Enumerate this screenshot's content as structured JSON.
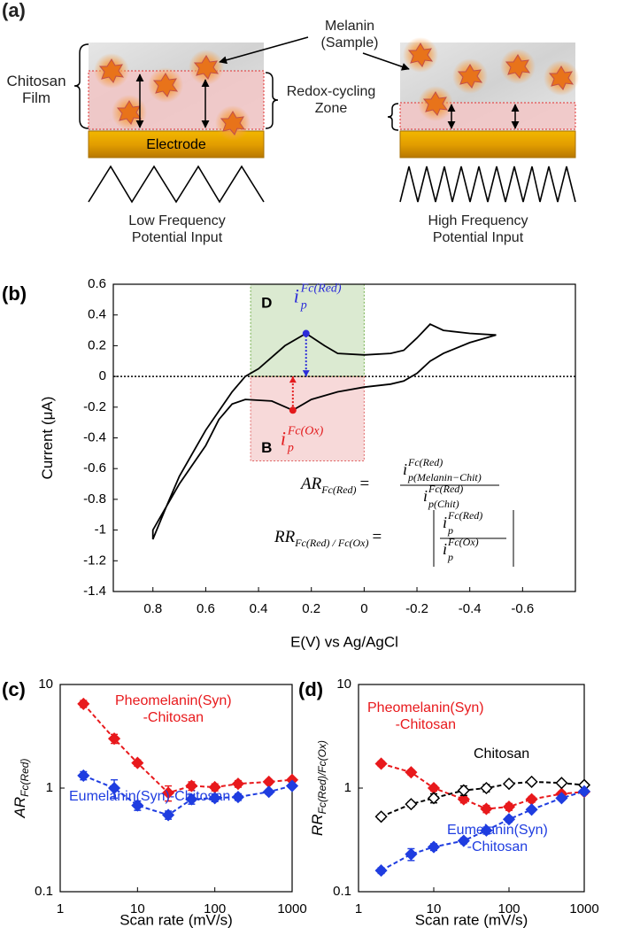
{
  "panel_a": {
    "label": "(a)",
    "melanin_label": "Melanin\n(Sample)",
    "film_label": "Chitosan\nFilm",
    "zone_label": "Redox-cycling\nZone",
    "electrode_label": "Electrode",
    "low_freq_label": "Low Frequency\nPotential Input",
    "high_freq_label": "High Frequency\nPotential Input"
  },
  "chart_data": [
    {
      "type": "line",
      "panel_label": "(b)",
      "x_label": "E(V) vs Ag/AgCl",
      "y_label": "Current (μA)",
      "xlim": [
        0.95,
        -0.8
      ],
      "ylim": [
        -1.4,
        0.6
      ],
      "xticks": [
        0.8,
        0.6,
        0.4,
        0.2,
        0,
        -0.2,
        -0.4,
        -0.6
      ],
      "yticks": [
        0.6,
        0.4,
        0.2,
        0,
        -0.2,
        -0.4,
        -0.6,
        -0.8,
        -1,
        -1.2,
        -1.4
      ],
      "hline": 0,
      "series": [
        {
          "color": "#000000",
          "x": [
            -0.5,
            -0.4,
            -0.3,
            -0.25,
            -0.2,
            -0.15,
            -0.1,
            0,
            0.1,
            0.15,
            0.22,
            0.3,
            0.4,
            0.45,
            0.5,
            0.6,
            0.7,
            0.75,
            0.8,
            0.8,
            0.7,
            0.6,
            0.55,
            0.5,
            0.45,
            0.35,
            0.27,
            0.2,
            0.1,
            0,
            -0.1,
            -0.15,
            -0.2,
            -0.25,
            -0.3,
            -0.4,
            -0.5
          ],
          "values": [
            0.27,
            0.28,
            0.3,
            0.34,
            0.25,
            0.17,
            0.15,
            0.14,
            0.15,
            0.2,
            0.28,
            0.2,
            0.05,
            0,
            -0.1,
            -0.35,
            -0.65,
            -0.85,
            -1.06,
            -1.0,
            -0.7,
            -0.45,
            -0.28,
            -0.18,
            -0.15,
            -0.16,
            -0.22,
            -0.15,
            -0.1,
            -0.07,
            -0.05,
            -0.03,
            0.02,
            0.1,
            0.15,
            0.22,
            0.27
          ]
        }
      ],
      "regions": [
        {
          "label": "D",
          "xrange": [
            0.43,
            0
          ],
          "yrange": [
            0,
            0.6
          ],
          "color": "#70ad47"
        },
        {
          "label": "B",
          "xrange": [
            0.43,
            0
          ],
          "yrange": [
            -0.55,
            0
          ],
          "color": "#e06666"
        }
      ],
      "peaks": [
        {
          "x": 0.22,
          "y": 0.28,
          "color": "#2b2bd9",
          "label": "i",
          "label_sub": "p",
          "label_sup": "Fc(Red)"
        },
        {
          "x": 0.27,
          "y": -0.22,
          "color": "#e31a1c",
          "label": "i",
          "label_sub": "p",
          "label_sup": "Fc(Ox)"
        }
      ],
      "equations": [
        {
          "lhs": "AR",
          "lhs_sub": "Fc(Red)",
          "eq": "=",
          "num": "i",
          "num_sup": "Fc(Red)",
          "num_sub": "p(Melanin−Chit)",
          "den": "i",
          "den_sup": "Fc(Red)",
          "den_sub": "p(Chit)"
        },
        {
          "lhs": "RR",
          "lhs_sub": "Fc(Red) / Fc(Ox)",
          "eq": "=",
          "num": "i",
          "num_sup": "Fc(Red)",
          "num_sub": "p",
          "den": "i",
          "den_sup": "Fc(Ox)",
          "den_sub": "p"
        }
      ]
    },
    {
      "type": "line",
      "panel_label": "(c)",
      "x_label": "Scan rate (mV/s)",
      "y_label": "AR",
      "y_label_sub": "Fc(Red)",
      "log_scale": true,
      "xlim": [
        1,
        1000
      ],
      "ylim": [
        0.1,
        10
      ],
      "xticks": [
        1,
        10,
        100,
        1000
      ],
      "yticks": [
        0.1,
        1,
        10
      ],
      "x": [
        2,
        5,
        10,
        25,
        50,
        100,
        200,
        500,
        1000
      ],
      "series": [
        {
          "name": "Pheomelanin(Syn)\n-Chitosan",
          "color": "#e8191c",
          "linestyle": "dashed",
          "marker": "diamond",
          "values": [
            6.5,
            3.0,
            1.75,
            0.9,
            1.05,
            1.02,
            1.1,
            1.15,
            1.2
          ],
          "errors": [
            0.5,
            0.3,
            0.12,
            0.15,
            0.1,
            0.08,
            0.08,
            0.06,
            0.06
          ]
        },
        {
          "name": "Eumelanin(Syn)-Chitosan",
          "color": "#1f3de0",
          "linestyle": "dashed",
          "marker": "diamond",
          "values": [
            1.32,
            1.0,
            0.68,
            0.55,
            0.78,
            0.8,
            0.82,
            0.92,
            1.05
          ],
          "errors": [
            0.12,
            0.2,
            0.07,
            0.05,
            0.08,
            0.06,
            0.06,
            0.05,
            0.05
          ]
        }
      ]
    },
    {
      "type": "line",
      "panel_label": "(d)",
      "x_label": "Scan rate (mV/s)",
      "y_label": "RR",
      "y_label_sub": "Fc(Red)/Fc(Ox)",
      "log_scale": true,
      "xlim": [
        1,
        1000
      ],
      "ylim": [
        0.1,
        10
      ],
      "xticks": [
        1,
        10,
        100,
        1000
      ],
      "yticks": [
        0.1,
        1,
        10
      ],
      "x": [
        2,
        5,
        10,
        25,
        50,
        100,
        200,
        500,
        1000
      ],
      "series": [
        {
          "name": "Pheomelanin(Syn)\n-Chitosan",
          "color": "#e8191c",
          "linestyle": "dashed",
          "marker": "diamond",
          "values": [
            1.72,
            1.42,
            1.0,
            0.78,
            0.63,
            0.66,
            0.78,
            0.88,
            0.92
          ],
          "errors": [
            0.1,
            0.08,
            0.06,
            0.06,
            0.05,
            0.05,
            0.05,
            0.05,
            0.05
          ]
        },
        {
          "name": "Chitosan",
          "color": "#000000",
          "fill": "#ffffff",
          "linestyle": "dashed",
          "marker": "diamond",
          "values": [
            0.53,
            0.7,
            0.8,
            0.95,
            1.0,
            1.1,
            1.15,
            1.12,
            1.07
          ],
          "errors": [
            0.03,
            0.04,
            0.08,
            0.1,
            0.08,
            0.06,
            0.05,
            0.05,
            0.05
          ]
        },
        {
          "name": "Eumelanin(Syn)\n-Chitosan",
          "color": "#1f3de0",
          "linestyle": "dashed",
          "marker": "diamond",
          "values": [
            0.16,
            0.23,
            0.27,
            0.31,
            0.39,
            0.5,
            0.62,
            0.8,
            0.93
          ],
          "errors": [
            0.01,
            0.03,
            0.02,
            0.02,
            0.03,
            0.03,
            0.03,
            0.04,
            0.05
          ]
        }
      ]
    }
  ]
}
